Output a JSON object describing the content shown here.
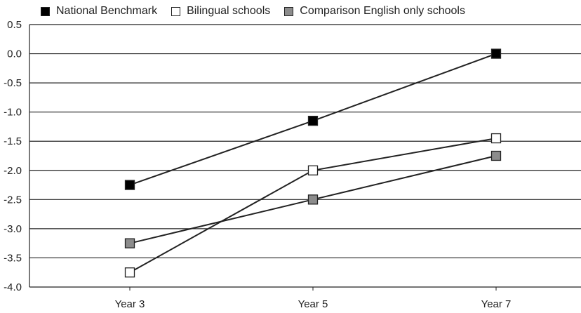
{
  "chart_data": {
    "type": "line",
    "title": "",
    "xlabel": "",
    "ylabel": "",
    "categories": [
      "Year 3",
      "Year 5",
      "Year 7"
    ],
    "ylim": [
      -4.0,
      0.5
    ],
    "yticks": [
      "0.5",
      "0.0",
      "-0.5",
      "-1.0",
      "-1.5",
      "-2.0",
      "-2.5",
      "-3.0",
      "-3.5",
      "-4.0"
    ],
    "ytick_values": [
      0.5,
      0.0,
      -0.5,
      -1.0,
      -1.5,
      -2.0,
      -2.5,
      -3.0,
      -3.5,
      -4.0
    ],
    "grid": "horizontal",
    "legend_position": "top",
    "series": [
      {
        "name": "National Benchmark",
        "values": [
          -2.25,
          -1.15,
          0.0
        ],
        "color": "#000000"
      },
      {
        "name": "Bilingual schools",
        "values": [
          -3.75,
          -2.0,
          -1.45
        ],
        "color": "#ffffff"
      },
      {
        "name": "Comparison English only schools",
        "values": [
          -3.25,
          -2.5,
          -1.75
        ],
        "color": "#8c8c8c"
      }
    ]
  }
}
